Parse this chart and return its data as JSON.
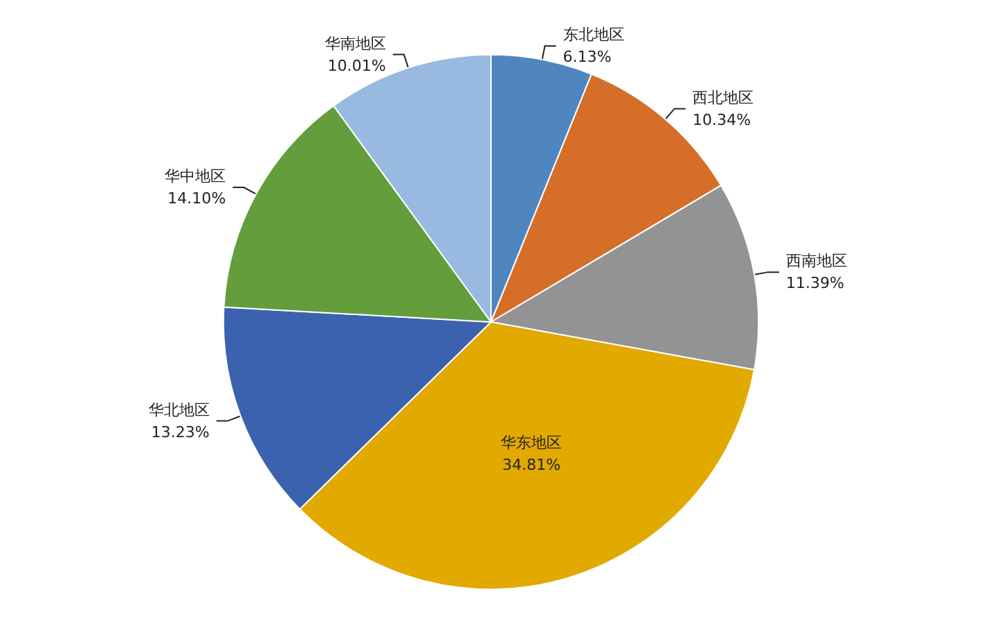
{
  "chart_data": {
    "type": "pie",
    "categories": [
      "东北地区",
      "西北地区",
      "西南地区",
      "华东地区",
      "华北地区",
      "华中地区",
      "华南地区"
    ],
    "values": [
      6.13,
      10.34,
      11.39,
      34.81,
      13.23,
      14.1,
      10.01
    ],
    "colors": [
      "#4f86c0",
      "#d46e28",
      "#939393",
      "#e2a900",
      "#3b62ae",
      "#639d3c",
      "#98b9e0"
    ],
    "value_labels": [
      "6.13%",
      "10.34%",
      "11.39%",
      "34.81%",
      "13.23%",
      "14.10%",
      "10.01%"
    ],
    "legend": false
  }
}
